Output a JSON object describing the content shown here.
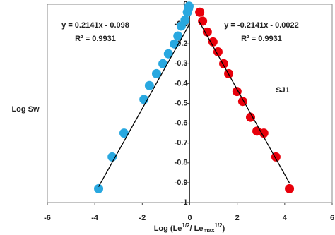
{
  "chart_data": {
    "type": "scatter",
    "xlabel": [
      "Log (Le",
      "1/2",
      "/ Le",
      "max",
      "1/2",
      ")"
    ],
    "ylabel": "Log Sw",
    "annotation": "SJ1",
    "xlim": [
      -6,
      6
    ],
    "xticks": [
      -6,
      -4,
      -2,
      0,
      2,
      4,
      6
    ],
    "ylim": [
      -1,
      0
    ],
    "yticks": [
      0,
      -0.1,
      -0.2,
      -0.3,
      -0.4,
      -0.5,
      -0.6,
      -0.7,
      -0.8,
      -0.9,
      -1
    ],
    "series": [
      {
        "color": "#29a8e0",
        "x": [
          -3.84,
          -3.27,
          -2.77,
          -1.93,
          -1.7,
          -1.4,
          -1.13,
          -0.9,
          -0.65,
          -0.5,
          -0.36,
          -0.2,
          -0.1,
          -0.05,
          -0.03
        ],
        "values": [
          -0.93,
          -0.77,
          -0.65,
          -0.48,
          -0.41,
          -0.35,
          -0.3,
          -0.25,
          -0.2,
          -0.16,
          -0.11,
          -0.08,
          -0.04,
          -0.02,
          -0.01
        ],
        "trendline": {
          "slope": 0.2141,
          "intercept": -0.098,
          "equation": "y = 0.2141x - 0.098",
          "r2": "R² = 0.9931"
        }
      },
      {
        "color": "#e8000b",
        "x": [
          0.42,
          0.54,
          0.74,
          0.98,
          1.19,
          1.43,
          1.64,
          1.99,
          2.23,
          2.56,
          2.83,
          3.12,
          3.63,
          4.2
        ],
        "values": [
          -0.04,
          -0.085,
          -0.14,
          -0.19,
          -0.24,
          -0.3,
          -0.35,
          -0.44,
          -0.49,
          -0.57,
          -0.64,
          -0.65,
          -0.77,
          -0.93
        ],
        "trendline": {
          "slope": -0.2141,
          "intercept": -0.0022,
          "equation": "y = -0.2141x - 0.0022",
          "r2": "R² = 0.9931"
        }
      }
    ]
  }
}
